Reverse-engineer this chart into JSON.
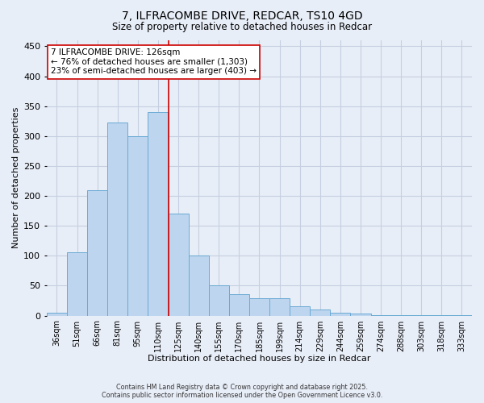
{
  "title_line1": "7, ILFRACOMBE DRIVE, REDCAR, TS10 4GD",
  "title_line2": "Size of property relative to detached houses in Redcar",
  "xlabel": "Distribution of detached houses by size in Redcar",
  "ylabel": "Number of detached properties",
  "categories": [
    "36sqm",
    "51sqm",
    "66sqm",
    "81sqm",
    "95sqm",
    "110sqm",
    "125sqm",
    "140sqm",
    "155sqm",
    "170sqm",
    "185sqm",
    "199sqm",
    "214sqm",
    "229sqm",
    "244sqm",
    "259sqm",
    "274sqm",
    "288sqm",
    "303sqm",
    "318sqm",
    "333sqm"
  ],
  "values": [
    5,
    106,
    210,
    322,
    300,
    340,
    170,
    100,
    50,
    36,
    29,
    29,
    16,
    10,
    5,
    3,
    1,
    1,
    1,
    1,
    1
  ],
  "bar_color": "#bdd5ee",
  "bar_edge_color": "#6aaad4",
  "bar_width": 1.0,
  "vline_color": "#cc0000",
  "vline_x_idx": 6,
  "ylim": [
    0,
    460
  ],
  "yticks": [
    0,
    50,
    100,
    150,
    200,
    250,
    300,
    350,
    400,
    450
  ],
  "annotation_text": "7 ILFRACOMBE DRIVE: 126sqm\n← 76% of detached houses are smaller (1,303)\n23% of semi-detached houses are larger (403) →",
  "annotation_box_color": "white",
  "annotation_box_edge_color": "#cc0000",
  "footer_line1": "Contains HM Land Registry data © Crown copyright and database right 2025.",
  "footer_line2": "Contains public sector information licensed under the Open Government Licence v3.0.",
  "background_color": "#e8eef8",
  "grid_color": "#c5cfe0"
}
